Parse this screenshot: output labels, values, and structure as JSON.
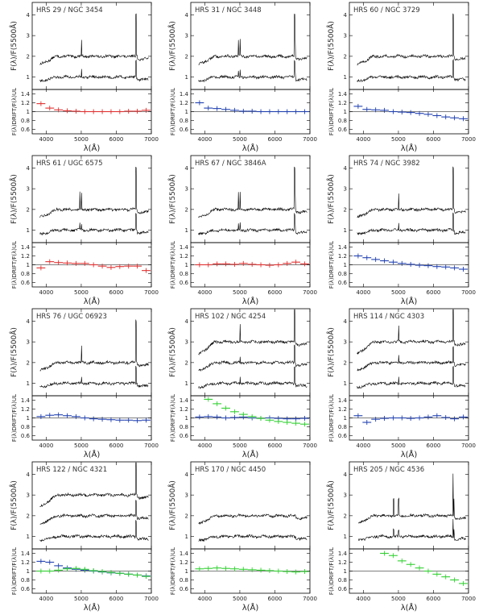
{
  "chart_data": {
    "type": "line",
    "shared": {
      "xlabel": "λ(Å)",
      "ylabel_top": "F(λ)/F(5500Å)",
      "ylabel_bottom": "F(λ)DRIFT/F(λ)UL",
      "xticks": [
        4000,
        5000,
        6000,
        7000
      ],
      "xlim": [
        3600,
        7000
      ],
      "top_yticks": [
        1,
        2,
        3,
        4
      ],
      "top_ylim": [
        0.4,
        4.6
      ],
      "bottom_yticks": [
        0.6,
        0.8,
        1,
        1.2,
        1.4
      ],
      "bottom_ylim": [
        0.5,
        1.5
      ]
    },
    "panels": [
      {
        "title": "HRS 29 / NGC 3454",
        "offsets": [
          2,
          1
        ],
        "lines": [
          6563,
          5007
        ],
        "ratio_series": [
          {
            "color": "#e03030",
            "values": [
              [
                3850,
                1.18
              ],
              [
                4100,
                1.08
              ],
              [
                4350,
                1.04
              ],
              [
                4600,
                1.02
              ],
              [
                4850,
                1.01
              ],
              [
                5100,
                1.0
              ],
              [
                5350,
                1.0
              ],
              [
                5600,
                1.0
              ],
              [
                5850,
                1.0
              ],
              [
                6100,
                1.0
              ],
              [
                6350,
                1.01
              ],
              [
                6600,
                1.01
              ],
              [
                6850,
                1.03
              ]
            ]
          }
        ]
      },
      {
        "title": "HRS 31 / NGC 3448",
        "offsets": [
          2,
          1
        ],
        "lines": [
          6563,
          5007,
          4959,
          6584
        ],
        "ratio_series": [
          {
            "color": "#2040b0",
            "values": [
              [
                3850,
                1.2
              ],
              [
                4100,
                1.08
              ],
              [
                4350,
                1.07
              ],
              [
                4600,
                1.05
              ],
              [
                4850,
                1.03
              ],
              [
                5100,
                1.01
              ],
              [
                5350,
                1.01
              ],
              [
                5600,
                1.0
              ],
              [
                5850,
                1.0
              ],
              [
                6100,
                1.0
              ],
              [
                6350,
                1.0
              ],
              [
                6600,
                1.0
              ],
              [
                6850,
                1.0
              ]
            ]
          }
        ]
      },
      {
        "title": "HRS 60 / NGC 3729",
        "offsets": [
          2,
          1
        ],
        "lines": [
          6563
        ],
        "ratio_series": [
          {
            "color": "#2040b0",
            "values": [
              [
                3850,
                1.12
              ],
              [
                4100,
                1.05
              ],
              [
                4350,
                1.04
              ],
              [
                4600,
                1.03
              ],
              [
                4850,
                1.0
              ],
              [
                5100,
                0.99
              ],
              [
                5350,
                0.98
              ],
              [
                5600,
                0.96
              ],
              [
                5850,
                0.94
              ],
              [
                6100,
                0.91
              ],
              [
                6350,
                0.88
              ],
              [
                6600,
                0.86
              ],
              [
                6850,
                0.84
              ]
            ]
          }
        ]
      },
      {
        "title": "HRS 61 / UGC 6575",
        "offsets": [
          2,
          1
        ],
        "lines": [
          6563,
          5007,
          4959
        ],
        "ratio_series": [
          {
            "color": "#e03030",
            "values": [
              [
                3850,
                0.93
              ],
              [
                4100,
                1.07
              ],
              [
                4350,
                1.05
              ],
              [
                4600,
                1.04
              ],
              [
                4850,
                1.03
              ],
              [
                5100,
                1.03
              ],
              [
                5350,
                1.0
              ],
              [
                5600,
                0.97
              ],
              [
                5850,
                0.94
              ],
              [
                6100,
                0.96
              ],
              [
                6350,
                0.97
              ],
              [
                6600,
                0.97
              ],
              [
                6850,
                0.87
              ]
            ]
          }
        ]
      },
      {
        "title": "HRS 67 / NGC 3846A",
        "offsets": [
          2,
          1
        ],
        "lines": [
          6563,
          5007,
          4959,
          6584
        ],
        "ratio_series": [
          {
            "color": "#e03030",
            "values": [
              [
                3850,
                1.0
              ],
              [
                4100,
                1.0
              ],
              [
                4350,
                1.02
              ],
              [
                4600,
                1.02
              ],
              [
                4850,
                1.01
              ],
              [
                5100,
                1.03
              ],
              [
                5350,
                1.01
              ],
              [
                5600,
                1.0
              ],
              [
                5850,
                0.99
              ],
              [
                6100,
                1.0
              ],
              [
                6350,
                1.03
              ],
              [
                6600,
                1.06
              ],
              [
                6850,
                1.02
              ]
            ]
          }
        ]
      },
      {
        "title": "HRS 74 / NGC 3982",
        "offsets": [
          2,
          1
        ],
        "lines": [
          6563,
          5007
        ],
        "ratio_series": [
          {
            "color": "#2040b0",
            "values": [
              [
                3850,
                1.2
              ],
              [
                4100,
                1.16
              ],
              [
                4350,
                1.12
              ],
              [
                4600,
                1.09
              ],
              [
                4850,
                1.06
              ],
              [
                5100,
                1.03
              ],
              [
                5350,
                1.01
              ],
              [
                5600,
                0.99
              ],
              [
                5850,
                0.98
              ],
              [
                6100,
                0.96
              ],
              [
                6350,
                0.95
              ],
              [
                6600,
                0.93
              ],
              [
                6850,
                0.9
              ]
            ]
          }
        ]
      },
      {
        "title": "HRS 76 / UGC 06923",
        "offsets": [
          2,
          1
        ],
        "lines": [
          6563,
          5007
        ],
        "ratio_series": [
          {
            "color": "#2040b0",
            "values": [
              [
                3850,
                1.03
              ],
              [
                4100,
                1.06
              ],
              [
                4350,
                1.07
              ],
              [
                4600,
                1.05
              ],
              [
                4850,
                1.03
              ],
              [
                5100,
                1.0
              ],
              [
                5350,
                0.98
              ],
              [
                5600,
                0.97
              ],
              [
                5850,
                0.96
              ],
              [
                6100,
                0.95
              ],
              [
                6350,
                0.95
              ],
              [
                6600,
                0.94
              ],
              [
                6850,
                0.95
              ]
            ]
          }
        ]
      },
      {
        "title": "HRS 102 / NGC 4254",
        "offsets": [
          3,
          2,
          1
        ],
        "lines": [
          6563,
          5007
        ],
        "ratio_series": [
          {
            "color": "#2040b0",
            "values": [
              [
                3850,
                1.02
              ],
              [
                4100,
                1.03
              ],
              [
                4350,
                1.02
              ],
              [
                4600,
                1.0
              ],
              [
                4850,
                1.01
              ],
              [
                5100,
                1.02
              ],
              [
                5350,
                1.0
              ],
              [
                5600,
                0.99
              ],
              [
                5850,
                1.0
              ],
              [
                6100,
                0.99
              ],
              [
                6350,
                0.98
              ],
              [
                6600,
                0.98
              ],
              [
                6850,
                0.99
              ]
            ]
          },
          {
            "color": "#30d030",
            "values": [
              [
                4100,
                1.42
              ],
              [
                4350,
                1.32
              ],
              [
                4600,
                1.22
              ],
              [
                4850,
                1.14
              ],
              [
                5100,
                1.08
              ],
              [
                5350,
                1.03
              ],
              [
                5600,
                0.99
              ],
              [
                5850,
                0.95
              ],
              [
                6100,
                0.92
              ],
              [
                6350,
                0.9
              ],
              [
                6600,
                0.88
              ],
              [
                6850,
                0.86
              ]
            ]
          }
        ]
      },
      {
        "title": "HRS 114 / NGC 4303",
        "offsets": [
          3,
          2,
          1
        ],
        "lines": [
          6563,
          5007
        ],
        "ratio_series": [
          {
            "color": "#2040b0",
            "values": [
              [
                3850,
                1.05
              ],
              [
                4100,
                0.9
              ],
              [
                4350,
                0.97
              ],
              [
                4600,
                0.99
              ],
              [
                4850,
                1.0
              ],
              [
                5100,
                1.0
              ],
              [
                5350,
                0.99
              ],
              [
                5600,
                1.0
              ],
              [
                5850,
                1.02
              ],
              [
                6100,
                1.05
              ],
              [
                6350,
                1.01
              ],
              [
                6600,
                0.98
              ],
              [
                6850,
                1.02
              ]
            ]
          }
        ]
      },
      {
        "title": "HRS 122 / NGC 4321",
        "offsets": [
          3,
          2,
          1
        ],
        "lines": [
          6563
        ],
        "ratio_series": [
          {
            "color": "#2040b0",
            "values": [
              [
                3850,
                1.22
              ],
              [
                4100,
                1.2
              ],
              [
                4350,
                1.12
              ],
              [
                4600,
                1.07
              ],
              [
                4850,
                1.04
              ],
              [
                5100,
                1.02
              ],
              [
                5350,
                1.0
              ],
              [
                5600,
                0.98
              ],
              [
                5850,
                0.96
              ],
              [
                6100,
                0.95
              ],
              [
                6350,
                0.93
              ],
              [
                6600,
                0.91
              ],
              [
                6850,
                0.89
              ]
            ]
          },
          {
            "color": "#30d030",
            "values": [
              [
                3850,
                1.0
              ],
              [
                4100,
                1.0
              ],
              [
                4350,
                1.02
              ],
              [
                4600,
                1.05
              ],
              [
                4850,
                1.06
              ],
              [
                5100,
                1.04
              ],
              [
                5350,
                1.01
              ],
              [
                5600,
                0.99
              ],
              [
                5850,
                0.97
              ],
              [
                6100,
                0.95
              ],
              [
                6350,
                0.93
              ],
              [
                6600,
                0.91
              ],
              [
                6850,
                0.88
              ]
            ]
          }
        ]
      },
      {
        "title": "HRS 170 / NGC 4450",
        "offsets": [
          2,
          1
        ],
        "lines": [],
        "ratio_series": [
          {
            "color": "#30d030",
            "values": [
              [
                3850,
                1.05
              ],
              [
                4100,
                1.06
              ],
              [
                4350,
                1.07
              ],
              [
                4600,
                1.06
              ],
              [
                4850,
                1.05
              ],
              [
                5100,
                1.04
              ],
              [
                5350,
                1.03
              ],
              [
                5600,
                1.02
              ],
              [
                5850,
                1.01
              ],
              [
                6100,
                1.0
              ],
              [
                6350,
                0.99
              ],
              [
                6600,
                0.98
              ],
              [
                6850,
                0.99
              ]
            ]
          }
        ]
      },
      {
        "title": "HRS 205 / NGC 4536",
        "offsets": [
          2,
          1
        ],
        "lines": [
          6563,
          6584,
          4861,
          5007
        ],
        "ratio_series": [
          {
            "color": "#30d030",
            "values": [
              [
                4600,
                1.4
              ],
              [
                4850,
                1.35
              ],
              [
                5100,
                1.23
              ],
              [
                5350,
                1.15
              ],
              [
                5600,
                1.07
              ],
              [
                5850,
                1.0
              ],
              [
                6100,
                0.93
              ],
              [
                6350,
                0.87
              ],
              [
                6600,
                0.8
              ],
              [
                6850,
                0.72
              ]
            ]
          }
        ]
      }
    ]
  }
}
